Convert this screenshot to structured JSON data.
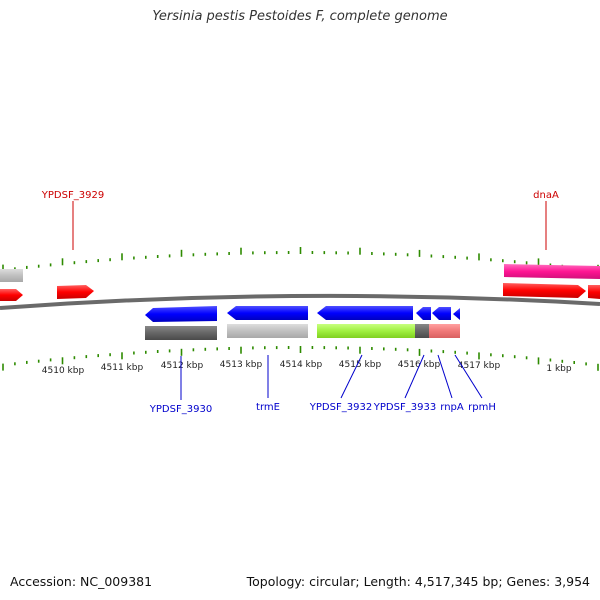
{
  "title": "Yersinia pestis Pestoides F, complete genome",
  "accession_text": "Accession: NC_009381",
  "summary_text": "Topology: circular; Length: 4,517,345 bp; Genes: 3,954",
  "tick_labels": [
    "4510 kbp",
    "4511 kbp",
    "4512 kbp",
    "4513 kbp",
    "4514 kbp",
    "4515 kbp",
    "4516 kbp",
    "4517 kbp",
    "1 kbp"
  ],
  "colors": {
    "forward_gene": "#ff0000",
    "forward_gene_pink": "#ff1493",
    "reverse_gene": "#0000ff",
    "forward_label": "#cc0000",
    "reverse_label": "#0000cc",
    "tick": "#2e8b00",
    "backbone": "#666666"
  },
  "forward_labels": [
    "YPDSF_3929",
    "dnaA"
  ],
  "reverse_labels": [
    "YPDSF_3930",
    "trmE",
    "YPDSF_3932",
    "YPDSF_3933",
    "rnpA",
    "rpmH"
  ]
}
